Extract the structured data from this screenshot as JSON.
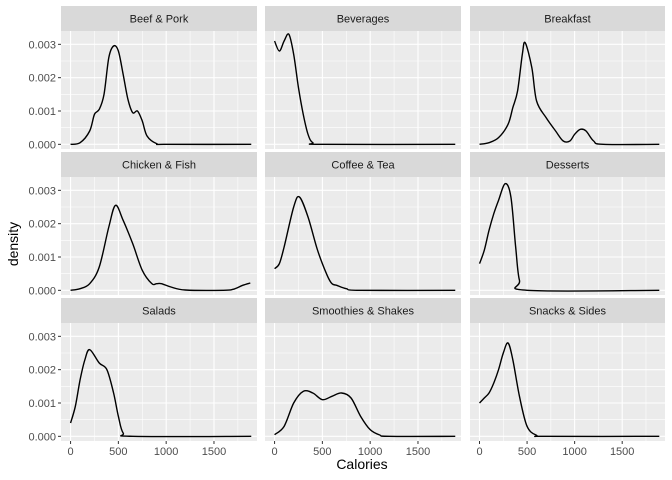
{
  "chart_data": {
    "type": "line",
    "xlabel": "Calories",
    "ylabel": "density",
    "xlim": [
      -100,
      1950
    ],
    "ylim": [
      -0.00014,
      0.0034
    ],
    "x_ticks": [
      0,
      500,
      1000,
      1500
    ],
    "x_tick_labels": [
      "0",
      "500",
      "1000",
      "1500"
    ],
    "y_ticks": [
      0,
      0.001,
      0.002,
      0.003
    ],
    "y_tick_labels": [
      "0.000",
      "0.001",
      "0.002",
      "0.003"
    ],
    "grid": true,
    "panel_background": "#ebebeb",
    "strip_background": "#d9d9d9",
    "line_color": "#000000",
    "facets": [
      {
        "name": "Beef & Pork",
        "points": [
          [
            0,
            0
          ],
          [
            100,
            5e-05
          ],
          [
            200,
            0.0004
          ],
          [
            250,
            0.0009
          ],
          [
            300,
            0.00105
          ],
          [
            350,
            0.0015
          ],
          [
            400,
            0.0026
          ],
          [
            450,
            0.00295
          ],
          [
            500,
            0.0028
          ],
          [
            550,
            0.0021
          ],
          [
            600,
            0.00135
          ],
          [
            650,
            0.00095
          ],
          [
            700,
            0.001
          ],
          [
            750,
            0.0007
          ],
          [
            800,
            0.00025
          ],
          [
            900,
            2e-05
          ],
          [
            1000,
            0
          ],
          [
            1890,
            0
          ]
        ]
      },
      {
        "name": "Beverages",
        "points": [
          [
            0,
            0.0031
          ],
          [
            50,
            0.0028
          ],
          [
            100,
            0.0031
          ],
          [
            150,
            0.0033
          ],
          [
            200,
            0.0027
          ],
          [
            250,
            0.0017
          ],
          [
            300,
            0.0009
          ],
          [
            350,
            0.0003
          ],
          [
            400,
            5e-05
          ],
          [
            500,
            0
          ],
          [
            1890,
            0
          ]
        ]
      },
      {
        "name": "Breakfast",
        "points": [
          [
            0,
            0
          ],
          [
            100,
            5e-05
          ],
          [
            200,
            0.0002
          ],
          [
            300,
            0.0006
          ],
          [
            350,
            0.0011
          ],
          [
            400,
            0.0016
          ],
          [
            450,
            0.0027
          ],
          [
            480,
            0.00305
          ],
          [
            550,
            0.0023
          ],
          [
            600,
            0.0013
          ],
          [
            700,
            0.0008
          ],
          [
            800,
            0.0004
          ],
          [
            880,
            0.0001
          ],
          [
            950,
            0.0001
          ],
          [
            1000,
            0.0003
          ],
          [
            1060,
            0.00045
          ],
          [
            1120,
            0.0004
          ],
          [
            1200,
            0.0001
          ],
          [
            1300,
            0
          ],
          [
            1890,
            0
          ]
        ]
      },
      {
        "name": "Chicken & Fish",
        "points": [
          [
            0,
            0
          ],
          [
            100,
            5e-05
          ],
          [
            200,
            0.0002
          ],
          [
            300,
            0.0007
          ],
          [
            400,
            0.0019
          ],
          [
            470,
            0.00255
          ],
          [
            550,
            0.0021
          ],
          [
            650,
            0.0014
          ],
          [
            750,
            0.0006
          ],
          [
            850,
            0.0002
          ],
          [
            900,
            0.0002
          ],
          [
            950,
            0.0002
          ],
          [
            1050,
            0.0001
          ],
          [
            1200,
            1e-05
          ],
          [
            1600,
            0
          ],
          [
            1700,
            3e-05
          ],
          [
            1800,
            0.00015
          ],
          [
            1880,
            0.00022
          ]
        ]
      },
      {
        "name": "Coffee & Tea",
        "points": [
          [
            0,
            0.00065
          ],
          [
            50,
            0.0008
          ],
          [
            100,
            0.0013
          ],
          [
            200,
            0.0025
          ],
          [
            260,
            0.0028
          ],
          [
            350,
            0.0022
          ],
          [
            450,
            0.0012
          ],
          [
            550,
            0.00045
          ],
          [
            600,
            0.0002
          ],
          [
            650,
            0.00015
          ],
          [
            750,
            5e-05
          ],
          [
            900,
            0
          ],
          [
            1890,
            0
          ]
        ]
      },
      {
        "name": "Desserts",
        "points": [
          [
            0,
            0.0008
          ],
          [
            50,
            0.0012
          ],
          [
            100,
            0.0018
          ],
          [
            150,
            0.0023
          ],
          [
            200,
            0.0027
          ],
          [
            270,
            0.0032
          ],
          [
            330,
            0.0028
          ],
          [
            380,
            0.0013
          ],
          [
            420,
            0.0003
          ],
          [
            500,
            0
          ],
          [
            1890,
            0
          ]
        ]
      },
      {
        "name": "Salads",
        "points": [
          [
            0,
            0.0004
          ],
          [
            50,
            0.0009
          ],
          [
            100,
            0.0017
          ],
          [
            150,
            0.0023
          ],
          [
            200,
            0.0026
          ],
          [
            300,
            0.0022
          ],
          [
            380,
            0.002
          ],
          [
            450,
            0.0013
          ],
          [
            500,
            0.0006
          ],
          [
            550,
            0.0001
          ],
          [
            650,
            0
          ],
          [
            1890,
            0
          ]
        ]
      },
      {
        "name": "Smoothies & Shakes",
        "points": [
          [
            0,
            5e-05
          ],
          [
            100,
            0.0003
          ],
          [
            200,
            0.001
          ],
          [
            300,
            0.00135
          ],
          [
            400,
            0.0013
          ],
          [
            500,
            0.0011
          ],
          [
            600,
            0.0012
          ],
          [
            700,
            0.0013
          ],
          [
            800,
            0.00115
          ],
          [
            900,
            0.0006
          ],
          [
            1000,
            0.0002
          ],
          [
            1100,
            4e-05
          ],
          [
            1200,
            0
          ],
          [
            1890,
            0
          ]
        ]
      },
      {
        "name": "Snacks & Sides",
        "points": [
          [
            0,
            0.001
          ],
          [
            50,
            0.00115
          ],
          [
            100,
            0.0013
          ],
          [
            150,
            0.0016
          ],
          [
            200,
            0.002
          ],
          [
            250,
            0.0025
          ],
          [
            300,
            0.0028
          ],
          [
            350,
            0.0023
          ],
          [
            420,
            0.0012
          ],
          [
            500,
            0.0003
          ],
          [
            600,
            3e-05
          ],
          [
            700,
            0
          ],
          [
            1890,
            0
          ]
        ]
      }
    ]
  }
}
